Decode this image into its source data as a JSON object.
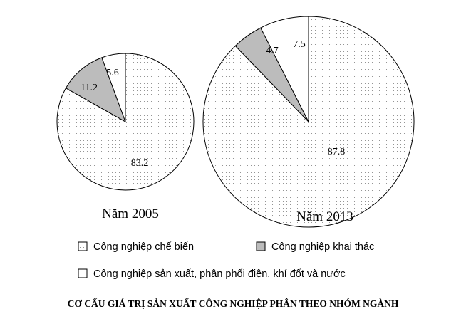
{
  "chart_data": {
    "type": "pie",
    "title": "CƠ CẤU GIÁ TRỊ SẢN XUẤT CÔNG NGHIỆP PHÂN THEO NHÓM NGÀNH",
    "legend_position": "bottom",
    "categories": [
      "Công nghiệp chế biến",
      "Công nghiệp khai thác",
      "Công nghiệp sản xuất, phân phối điện, khí đốt và nước"
    ],
    "patterns": [
      "dotted",
      "gray",
      "white"
    ],
    "colors": {
      "gray": "#bcbcbc",
      "white": "#ffffff",
      "dot": "#7a7a7a",
      "stroke": "#000000"
    },
    "pies": [
      {
        "year_label": "Năm 2005",
        "values": [
          83.2,
          11.2,
          5.6
        ],
        "labels": [
          "83.2",
          "11.2",
          "5.6"
        ]
      },
      {
        "year_label": "Năm 2013",
        "values": [
          87.8,
          4.7,
          7.5
        ],
        "labels": [
          "87.8",
          "4.7",
          "7.5"
        ]
      }
    ]
  }
}
